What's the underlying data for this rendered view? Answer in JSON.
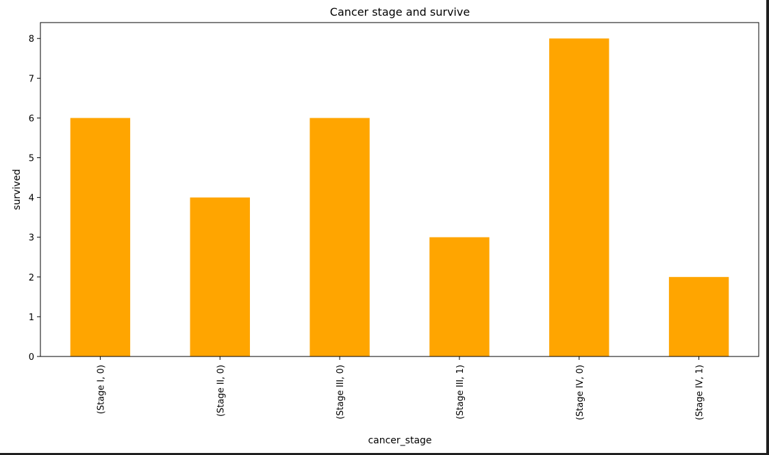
{
  "chart_data": {
    "type": "bar",
    "title": "Cancer stage and survive",
    "xlabel": "cancer_stage",
    "ylabel": "survived",
    "categories": [
      "(Stage I, 0)",
      "(Stage II, 0)",
      "(Stage III, 0)",
      "(Stage III, 1)",
      "(Stage IV, 0)",
      "(Stage IV, 1)"
    ],
    "values": [
      6,
      4,
      6,
      3,
      8,
      2
    ],
    "ylim": [
      0,
      8.4
    ],
    "yticks": [
      0,
      1,
      2,
      3,
      4,
      5,
      6,
      7,
      8
    ],
    "bar_color": "#FFA500",
    "grid": false,
    "legend": "none"
  }
}
